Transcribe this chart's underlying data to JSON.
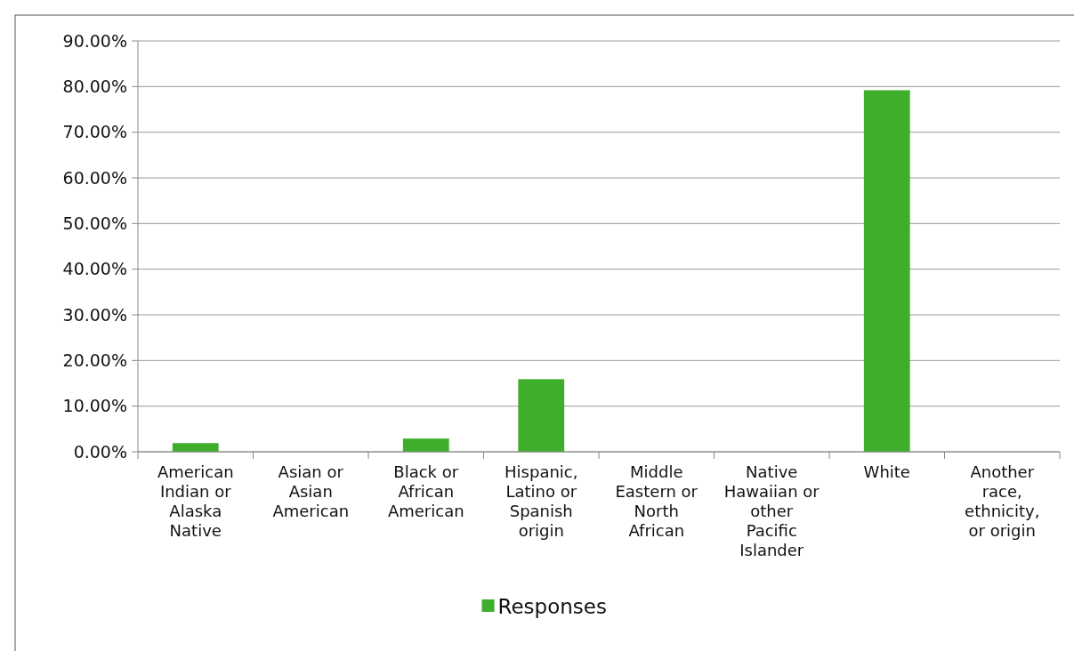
{
  "chart_data": {
    "type": "bar",
    "categories": [
      "American Indian or Alaska Native",
      "Asian or Asian American",
      "Black or African American",
      "Hispanic, Latino or Spanish origin",
      "Middle Eastern or North African",
      "Native Hawaiian or other Pacific Islander",
      "White",
      "Another race, ethnicity, or origin"
    ],
    "series": [
      {
        "name": "Responses",
        "color": "#3fae2a",
        "values": [
          1.9,
          0,
          2.9,
          15.9,
          0,
          0,
          79.2,
          0
        ]
      }
    ],
    "ylim": [
      0,
      90
    ],
    "yticks": [
      {
        "value": 0,
        "label": "0.00%"
      },
      {
        "value": 10,
        "label": "10.00%"
      },
      {
        "value": 20,
        "label": "20.00%"
      },
      {
        "value": 30,
        "label": "30.00%"
      },
      {
        "value": 40,
        "label": "40.00%"
      },
      {
        "value": 50,
        "label": "50.00%"
      },
      {
        "value": 60,
        "label": "60.00%"
      },
      {
        "value": 70,
        "label": "70.00%"
      },
      {
        "value": 80,
        "label": "80.00%"
      },
      {
        "value": 90,
        "label": "90.00%"
      }
    ],
    "grid": "y",
    "legend": "bottom"
  }
}
